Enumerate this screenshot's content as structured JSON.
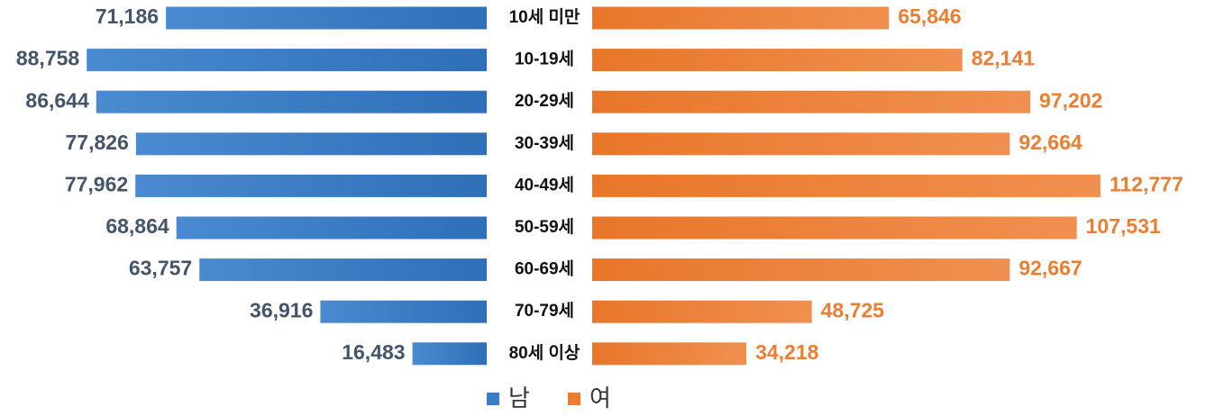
{
  "chart_data": {
    "type": "pyramid",
    "categories": [
      "10세 미만",
      "10-19세",
      "20-29세",
      "30-39세",
      "40-49세",
      "50-59세",
      "60-69세",
      "70-79세",
      "80세 이상"
    ],
    "series": [
      {
        "name": "남",
        "color": "#3a7dc6",
        "label_color": "#44546a",
        "values": [
          71186,
          88758,
          86644,
          77826,
          77962,
          68864,
          63757,
          36916,
          16483
        ],
        "value_labels": [
          "71,186",
          "88,758",
          "86,644",
          "77,826",
          "77,962",
          "68,864",
          "63,757",
          "36,916",
          "16,483"
        ]
      },
      {
        "name": "여",
        "color": "#ed7d31",
        "label_color": "#ed7d31",
        "values": [
          65846,
          82141,
          97202,
          92664,
          112777,
          107531,
          92667,
          48725,
          34218
        ],
        "value_labels": [
          "65,846",
          "82,141",
          "97,202",
          "92,664",
          "112,777",
          "107,531",
          "92,667",
          "48,725",
          "34,218"
        ]
      }
    ],
    "legend": "bottom"
  }
}
